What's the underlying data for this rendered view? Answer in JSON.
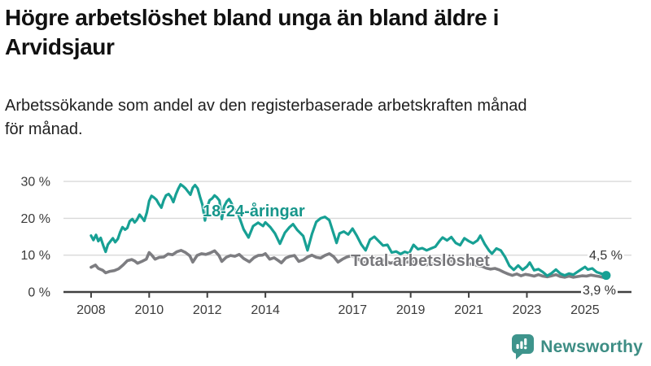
{
  "header": {
    "title_lines": [
      "Högre arbetslöshet bland unga än bland äldre i",
      "Arvidsjaur"
    ],
    "subtitle_lines": [
      "Arbetssökande som andel av den registerbaserade arbetskraften månad",
      "för månad."
    ]
  },
  "logo": {
    "text": "Newsworthy",
    "accent_color": "#3e948c"
  },
  "colors": {
    "young_line": "#17a094",
    "total_line": "#7d7d81",
    "axis": "#404040",
    "gridline": "#d9d9d9",
    "text": "#111111"
  },
  "chart_data": {
    "type": "line",
    "title": "Högre arbetslöshet bland unga än bland äldre i Arvidsjaur",
    "subtitle": "Arbetssökande som andel av den registerbaserade arbetskraften månad för månad.",
    "xlabel": "",
    "ylabel": "",
    "grid": "horizontal",
    "xlim": [
      2007.05,
      2026.6
    ],
    "ylim": [
      0,
      33
    ],
    "x_ticks": [
      2008,
      2010,
      2012,
      2014,
      2017,
      2019,
      2021,
      2023,
      2025
    ],
    "x_tick_labels": [
      "2008",
      "2010",
      "2012",
      "2014",
      "2017",
      "2019",
      "2021",
      "2023",
      "2025"
    ],
    "y_ticks": [
      0,
      10,
      20,
      30
    ],
    "y_tick_labels": [
      "0 %",
      "10 %",
      "20 %",
      "30 %"
    ],
    "series": [
      {
        "name": "Total arbetslöshet",
        "color": "#7d7d81",
        "width": 3.6,
        "end_label": "3,9 %",
        "end_value": 3.9,
        "end_dot": false,
        "points": [
          [
            2008.0,
            6.7
          ],
          [
            2008.15,
            7.3
          ],
          [
            2008.25,
            6.4
          ],
          [
            2008.4,
            5.9
          ],
          [
            2008.5,
            5.2
          ],
          [
            2008.65,
            5.6
          ],
          [
            2008.8,
            5.8
          ],
          [
            2008.95,
            6.3
          ],
          [
            2009.1,
            7.3
          ],
          [
            2009.25,
            8.5
          ],
          [
            2009.4,
            8.8
          ],
          [
            2009.5,
            8.4
          ],
          [
            2009.6,
            7.8
          ],
          [
            2009.75,
            8.3
          ],
          [
            2009.9,
            8.9
          ],
          [
            2010.0,
            10.7
          ],
          [
            2010.1,
            9.9
          ],
          [
            2010.2,
            8.9
          ],
          [
            2010.35,
            9.4
          ],
          [
            2010.5,
            9.5
          ],
          [
            2010.65,
            10.3
          ],
          [
            2010.8,
            10.1
          ],
          [
            2010.95,
            10.9
          ],
          [
            2011.1,
            11.3
          ],
          [
            2011.25,
            10.7
          ],
          [
            2011.4,
            9.8
          ],
          [
            2011.5,
            8.1
          ],
          [
            2011.65,
            9.9
          ],
          [
            2011.8,
            10.4
          ],
          [
            2011.95,
            10.2
          ],
          [
            2012.1,
            10.6
          ],
          [
            2012.25,
            11.2
          ],
          [
            2012.4,
            9.9
          ],
          [
            2012.5,
            8.3
          ],
          [
            2012.65,
            9.4
          ],
          [
            2012.8,
            9.9
          ],
          [
            2012.95,
            9.7
          ],
          [
            2013.1,
            10.2
          ],
          [
            2013.25,
            9.1
          ],
          [
            2013.45,
            8.2
          ],
          [
            2013.6,
            9.3
          ],
          [
            2013.75,
            9.9
          ],
          [
            2013.9,
            10.0
          ],
          [
            2014.0,
            10.4
          ],
          [
            2014.15,
            8.9
          ],
          [
            2014.3,
            9.3
          ],
          [
            2014.45,
            8.5
          ],
          [
            2014.55,
            7.9
          ],
          [
            2014.7,
            9.2
          ],
          [
            2014.85,
            9.7
          ],
          [
            2015.0,
            9.9
          ],
          [
            2015.15,
            8.3
          ],
          [
            2015.3,
            8.7
          ],
          [
            2015.45,
            9.5
          ],
          [
            2015.6,
            10.0
          ],
          [
            2015.75,
            9.4
          ],
          [
            2015.9,
            9.2
          ],
          [
            2016.05,
            9.9
          ],
          [
            2016.2,
            10.4
          ],
          [
            2016.35,
            9.6
          ],
          [
            2016.5,
            8.1
          ],
          [
            2016.65,
            8.9
          ],
          [
            2016.8,
            9.5
          ],
          [
            2016.95,
            9.8
          ],
          [
            2017.1,
            9.4
          ],
          [
            2017.25,
            8.6
          ],
          [
            2017.4,
            7.8
          ],
          [
            2017.55,
            8.8
          ],
          [
            2017.7,
            9.4
          ],
          [
            2017.85,
            9.1
          ],
          [
            2018.0,
            8.9
          ],
          [
            2018.15,
            8.4
          ],
          [
            2018.3,
            7.8
          ],
          [
            2018.45,
            8.2
          ],
          [
            2018.6,
            8.0
          ],
          [
            2018.75,
            8.3
          ],
          [
            2018.9,
            8.1
          ],
          [
            2019.05,
            8.4
          ],
          [
            2019.2,
            7.9
          ],
          [
            2019.35,
            7.6
          ],
          [
            2019.5,
            7.3
          ],
          [
            2019.65,
            7.5
          ],
          [
            2019.8,
            7.7
          ],
          [
            2019.95,
            8.1
          ],
          [
            2020.1,
            8.6
          ],
          [
            2020.25,
            8.3
          ],
          [
            2020.4,
            8.5
          ],
          [
            2020.55,
            7.9
          ],
          [
            2020.7,
            7.6
          ],
          [
            2020.85,
            7.9
          ],
          [
            2021.0,
            7.7
          ],
          [
            2021.15,
            7.4
          ],
          [
            2021.3,
            7.2
          ],
          [
            2021.45,
            7.0
          ],
          [
            2021.6,
            6.5
          ],
          [
            2021.75,
            6.2
          ],
          [
            2021.9,
            6.4
          ],
          [
            2022.05,
            6.0
          ],
          [
            2022.2,
            5.4
          ],
          [
            2022.35,
            4.9
          ],
          [
            2022.5,
            4.5
          ],
          [
            2022.65,
            4.9
          ],
          [
            2022.8,
            4.4
          ],
          [
            2022.95,
            4.8
          ],
          [
            2023.1,
            4.6
          ],
          [
            2023.25,
            4.3
          ],
          [
            2023.4,
            4.7
          ],
          [
            2023.55,
            4.3
          ],
          [
            2023.7,
            4.1
          ],
          [
            2023.85,
            4.4
          ],
          [
            2024.0,
            4.7
          ],
          [
            2024.15,
            4.2
          ],
          [
            2024.3,
            4.0
          ],
          [
            2024.45,
            4.3
          ],
          [
            2024.6,
            4.0
          ],
          [
            2024.75,
            4.2
          ],
          [
            2024.9,
            4.4
          ],
          [
            2025.05,
            4.3
          ],
          [
            2025.2,
            4.6
          ],
          [
            2025.35,
            4.4
          ],
          [
            2025.5,
            4.2
          ],
          [
            2025.65,
            3.9
          ]
        ]
      },
      {
        "name": "18-24-åringar",
        "color": "#17a094",
        "width": 3.2,
        "end_label": "4,5 %",
        "end_value": 4.5,
        "end_dot": true,
        "points": [
          [
            2008.0,
            15.3
          ],
          [
            2008.08,
            14.1
          ],
          [
            2008.17,
            15.5
          ],
          [
            2008.25,
            13.8
          ],
          [
            2008.33,
            14.7
          ],
          [
            2008.42,
            12.6
          ],
          [
            2008.5,
            10.9
          ],
          [
            2008.58,
            12.9
          ],
          [
            2008.67,
            13.8
          ],
          [
            2008.75,
            14.6
          ],
          [
            2008.83,
            13.5
          ],
          [
            2008.92,
            14.4
          ],
          [
            2009.0,
            16.2
          ],
          [
            2009.08,
            17.6
          ],
          [
            2009.17,
            16.9
          ],
          [
            2009.25,
            17.4
          ],
          [
            2009.33,
            19.2
          ],
          [
            2009.42,
            19.8
          ],
          [
            2009.5,
            18.9
          ],
          [
            2009.58,
            19.6
          ],
          [
            2009.67,
            21.0
          ],
          [
            2009.75,
            20.2
          ],
          [
            2009.83,
            19.3
          ],
          [
            2009.92,
            21.6
          ],
          [
            2010.0,
            24.7
          ],
          [
            2010.08,
            26.1
          ],
          [
            2010.17,
            25.6
          ],
          [
            2010.25,
            25.0
          ],
          [
            2010.33,
            23.9
          ],
          [
            2010.42,
            22.9
          ],
          [
            2010.5,
            24.9
          ],
          [
            2010.58,
            26.2
          ],
          [
            2010.67,
            26.6
          ],
          [
            2010.75,
            25.8
          ],
          [
            2010.83,
            24.4
          ],
          [
            2010.92,
            26.5
          ],
          [
            2011.0,
            28.0
          ],
          [
            2011.08,
            29.2
          ],
          [
            2011.17,
            28.7
          ],
          [
            2011.25,
            28.1
          ],
          [
            2011.33,
            27.3
          ],
          [
            2011.42,
            26.4
          ],
          [
            2011.5,
            28.3
          ],
          [
            2011.58,
            29.0
          ],
          [
            2011.67,
            28.1
          ],
          [
            2011.75,
            25.8
          ],
          [
            2011.83,
            23.7
          ],
          [
            2011.92,
            19.4
          ],
          [
            2012.0,
            23.1
          ],
          [
            2012.08,
            24.9
          ],
          [
            2012.17,
            25.4
          ],
          [
            2012.25,
            26.2
          ],
          [
            2012.33,
            25.7
          ],
          [
            2012.42,
            24.8
          ],
          [
            2012.5,
            19.8
          ],
          [
            2012.58,
            23.2
          ],
          [
            2012.67,
            24.6
          ],
          [
            2012.75,
            25.2
          ],
          [
            2012.83,
            24.1
          ],
          [
            2012.92,
            22.6
          ],
          [
            2013.08,
            20.8
          ],
          [
            2013.25,
            17.0
          ],
          [
            2013.42,
            14.8
          ],
          [
            2013.58,
            17.9
          ],
          [
            2013.75,
            18.8
          ],
          [
            2013.92,
            17.9
          ],
          [
            2014.0,
            18.9
          ],
          [
            2014.17,
            17.6
          ],
          [
            2014.33,
            15.9
          ],
          [
            2014.5,
            13.1
          ],
          [
            2014.67,
            16.1
          ],
          [
            2014.83,
            17.6
          ],
          [
            2014.95,
            18.4
          ],
          [
            2015.1,
            16.8
          ],
          [
            2015.3,
            15.2
          ],
          [
            2015.45,
            11.3
          ],
          [
            2015.6,
            15.7
          ],
          [
            2015.75,
            19.0
          ],
          [
            2015.9,
            20.0
          ],
          [
            2016.05,
            20.4
          ],
          [
            2016.2,
            19.5
          ],
          [
            2016.35,
            15.8
          ],
          [
            2016.45,
            13.3
          ],
          [
            2016.55,
            15.9
          ],
          [
            2016.7,
            16.4
          ],
          [
            2016.85,
            15.6
          ],
          [
            2017.0,
            17.2
          ],
          [
            2017.15,
            15.2
          ],
          [
            2017.3,
            12.9
          ],
          [
            2017.45,
            11.3
          ],
          [
            2017.6,
            14.2
          ],
          [
            2017.75,
            15.0
          ],
          [
            2017.9,
            13.8
          ],
          [
            2018.05,
            12.6
          ],
          [
            2018.2,
            12.8
          ],
          [
            2018.35,
            10.7
          ],
          [
            2018.5,
            11.0
          ],
          [
            2018.65,
            10.3
          ],
          [
            2018.8,
            10.9
          ],
          [
            2018.95,
            10.5
          ],
          [
            2019.1,
            12.8
          ],
          [
            2019.25,
            11.6
          ],
          [
            2019.4,
            11.9
          ],
          [
            2019.55,
            11.3
          ],
          [
            2019.7,
            11.8
          ],
          [
            2019.85,
            12.3
          ],
          [
            2020.0,
            13.9
          ],
          [
            2020.1,
            14.8
          ],
          [
            2020.25,
            14.0
          ],
          [
            2020.4,
            14.9
          ],
          [
            2020.55,
            13.3
          ],
          [
            2020.7,
            12.7
          ],
          [
            2020.85,
            14.6
          ],
          [
            2021.0,
            13.8
          ],
          [
            2021.15,
            13.2
          ],
          [
            2021.3,
            14.0
          ],
          [
            2021.4,
            15.3
          ],
          [
            2021.55,
            13.0
          ],
          [
            2021.7,
            11.2
          ],
          [
            2021.8,
            10.4
          ],
          [
            2021.95,
            11.8
          ],
          [
            2022.1,
            11.3
          ],
          [
            2022.25,
            9.5
          ],
          [
            2022.4,
            7.1
          ],
          [
            2022.55,
            6.0
          ],
          [
            2022.7,
            7.2
          ],
          [
            2022.85,
            6.0
          ],
          [
            2023.0,
            6.9
          ],
          [
            2023.1,
            8.0
          ],
          [
            2023.25,
            5.9
          ],
          [
            2023.4,
            6.2
          ],
          [
            2023.55,
            5.4
          ],
          [
            2023.7,
            4.4
          ],
          [
            2023.85,
            5.1
          ],
          [
            2024.0,
            6.1
          ],
          [
            2024.15,
            5.0
          ],
          [
            2024.3,
            4.5
          ],
          [
            2024.45,
            5.0
          ],
          [
            2024.6,
            4.7
          ],
          [
            2024.75,
            5.5
          ],
          [
            2024.9,
            6.3
          ],
          [
            2025.0,
            6.8
          ],
          [
            2025.1,
            6.1
          ],
          [
            2025.25,
            6.4
          ],
          [
            2025.4,
            5.4
          ],
          [
            2025.55,
            5.0
          ],
          [
            2025.73,
            4.5
          ]
        ]
      }
    ]
  }
}
